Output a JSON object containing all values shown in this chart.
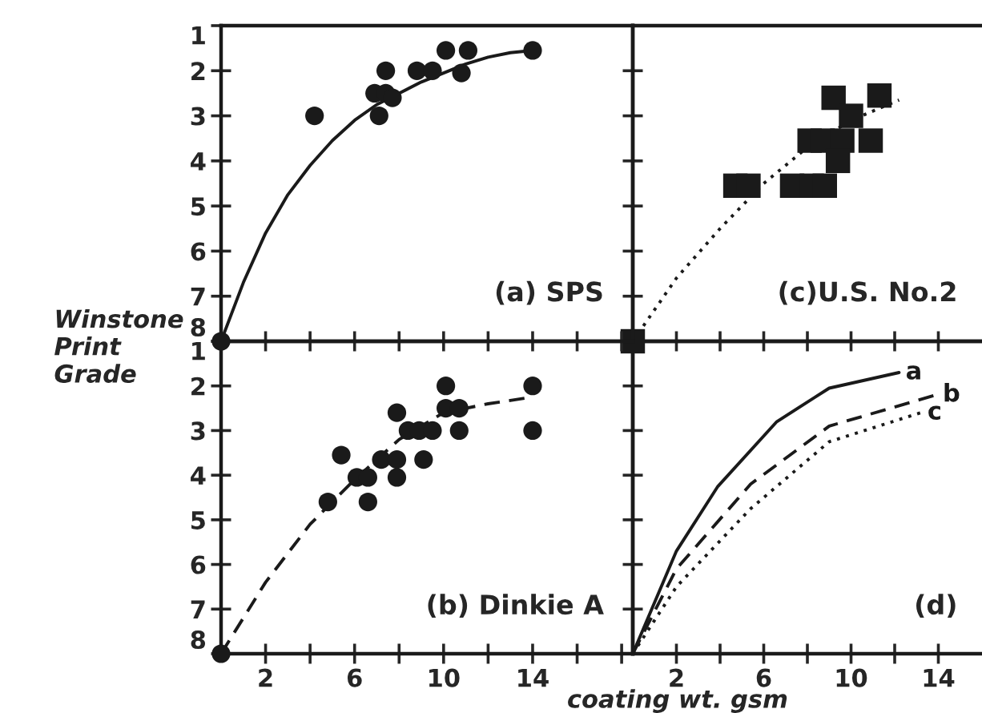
{
  "chart_data": [
    {
      "type": "scatter",
      "ylabel": "Winstone Print Grade",
      "annotations": [
        "(a) SPS"
      ],
      "xlim": [
        0,
        18.5
      ],
      "ylim": [
        8,
        1
      ],
      "xticks": [
        2,
        4,
        6,
        8,
        10,
        12,
        14,
        16,
        18
      ],
      "yticks": [
        1,
        2,
        3,
        4,
        5,
        6,
        7,
        8
      ],
      "tick_labels": "y",
      "grid": false,
      "legend": false,
      "series": [
        {
          "type": "scatter",
          "marker": "circle",
          "color": "#1a1a1a",
          "x": [
            0,
            4.2,
            6.9,
            7.1,
            7.4,
            7.4,
            7.7,
            8.8,
            9.5,
            10.1,
            10.8,
            11.1,
            14.0
          ],
          "values": [
            8,
            3,
            2.5,
            3,
            2,
            2.5,
            2.6,
            2,
            2,
            1.55,
            2.05,
            1.55,
            1.55
          ]
        },
        {
          "type": "line",
          "line_style": "solid",
          "marker": "none",
          "color": "#1a1a1a",
          "x": [
            0,
            1,
            2,
            3,
            4,
            5,
            6,
            7,
            8,
            9,
            10,
            11,
            12,
            13,
            14
          ],
          "values": [
            8,
            6.7,
            5.6,
            4.75,
            4.1,
            3.55,
            3.1,
            2.75,
            2.5,
            2.25,
            2.05,
            1.85,
            1.7,
            1.6,
            1.55
          ]
        }
      ]
    },
    {
      "type": "scatter",
      "annotations": [
        "(c)U.S. No.2"
      ],
      "xlim": [
        0,
        16
      ],
      "ylim": [
        8,
        1
      ],
      "xticks": [
        2,
        4,
        6,
        8,
        10,
        12,
        14
      ],
      "yticks": [
        1,
        2,
        3,
        4,
        5,
        6,
        7,
        8
      ],
      "tick_labels": false,
      "grid": false,
      "legend": false,
      "series": [
        {
          "type": "scatter",
          "marker": "square",
          "color": "#1a1a1a",
          "x": [
            0,
            4.7,
            5.3,
            7.3,
            8.2,
            8.8,
            8.1,
            8.7,
            9.6,
            9.4,
            9.2,
            10.0,
            10.9,
            11.3
          ],
          "values": [
            8,
            4.55,
            4.55,
            4.55,
            4.55,
            4.55,
            3.55,
            3.55,
            3.55,
            4.0,
            2.6,
            3.0,
            3.55,
            2.55
          ]
        },
        {
          "type": "line",
          "line_style": "dotted",
          "marker": "none",
          "color": "#1a1a1a",
          "x": [
            0,
            2,
            4,
            6,
            8,
            10,
            12.2
          ],
          "values": [
            8,
            6.6,
            5.5,
            4.5,
            3.7,
            3.1,
            2.65
          ]
        }
      ]
    },
    {
      "type": "scatter",
      "annotations": [
        "(b) Dinkie A"
      ],
      "xlim": [
        0,
        18.5
      ],
      "ylim": [
        8,
        1
      ],
      "xticks": [
        {
          "value": 2,
          "label": "2"
        },
        {
          "value": 4,
          "label": null
        },
        {
          "value": 6,
          "label": "6"
        },
        {
          "value": 8,
          "label": null
        },
        {
          "value": 10,
          "label": "10"
        },
        {
          "value": 12,
          "label": null
        },
        {
          "value": 14,
          "label": "14"
        },
        {
          "value": 16,
          "label": null
        },
        {
          "value": 18,
          "label": null
        }
      ],
      "yticks": [
        1,
        2,
        3,
        4,
        5,
        6,
        7,
        8
      ],
      "grid": false,
      "legend": false,
      "series": [
        {
          "type": "scatter",
          "marker": "circle",
          "color": "#1a1a1a",
          "x": [
            0,
            4.8,
            5.4,
            6.1,
            6.6,
            6.6,
            7.2,
            7.9,
            7.9,
            7.9,
            8.4,
            8.9,
            9.5,
            9.1,
            10.1,
            10.1,
            10.7,
            10.7,
            14.0,
            14.0
          ],
          "values": [
            8,
            4.6,
            3.55,
            4.05,
            4.05,
            4.6,
            3.65,
            2.6,
            3.65,
            4.05,
            3.0,
            3.0,
            3.0,
            3.65,
            2.0,
            2.5,
            2.5,
            3.0,
            2.0,
            3.0
          ]
        },
        {
          "type": "line",
          "line_style": "dashed",
          "marker": "none",
          "color": "#1a1a1a",
          "x": [
            0,
            2,
            4,
            6,
            8,
            10,
            12,
            14
          ],
          "values": [
            8,
            6.4,
            5.1,
            4.1,
            3.2,
            2.6,
            2.4,
            2.25
          ]
        }
      ]
    },
    {
      "type": "line",
      "xlabel": "coating wt. gsm",
      "xlim": [
        0,
        16
      ],
      "ylim": [
        8,
        1
      ],
      "xticks": [
        {
          "value": 2,
          "label": "2"
        },
        {
          "value": 4,
          "label": null
        },
        {
          "value": 6,
          "label": "6"
        },
        {
          "value": 8,
          "label": null
        },
        {
          "value": 10,
          "label": "10"
        },
        {
          "value": 12,
          "label": null
        },
        {
          "value": 14,
          "label": "14"
        }
      ],
      "yticks": [
        1,
        2,
        3,
        4,
        5,
        6,
        7,
        8
      ],
      "tick_labels": "x",
      "grid": false,
      "legend": false,
      "annotations": [
        "(d)"
      ],
      "series": [
        {
          "name": "a",
          "line_style": "solid",
          "marker": "none",
          "color": "#1a1a1a",
          "x": [
            0,
            2,
            3.9,
            6.6,
            9.0,
            12.2
          ],
          "values": [
            8,
            5.7,
            4.25,
            2.8,
            2.05,
            1.7
          ]
        },
        {
          "name": "b",
          "line_style": "dashed",
          "marker": "none",
          "color": "#1a1a1a",
          "x": [
            0,
            2,
            5.4,
            9.0,
            13.9
          ],
          "values": [
            8,
            6.1,
            4.2,
            2.9,
            2.2
          ]
        },
        {
          "name": "c",
          "line_style": "dotted",
          "marker": "none",
          "color": "#1a1a1a",
          "x": [
            0,
            2,
            5.4,
            9.0,
            13.2
          ],
          "values": [
            8,
            6.5,
            4.75,
            3.25,
            2.6
          ]
        }
      ]
    }
  ]
}
